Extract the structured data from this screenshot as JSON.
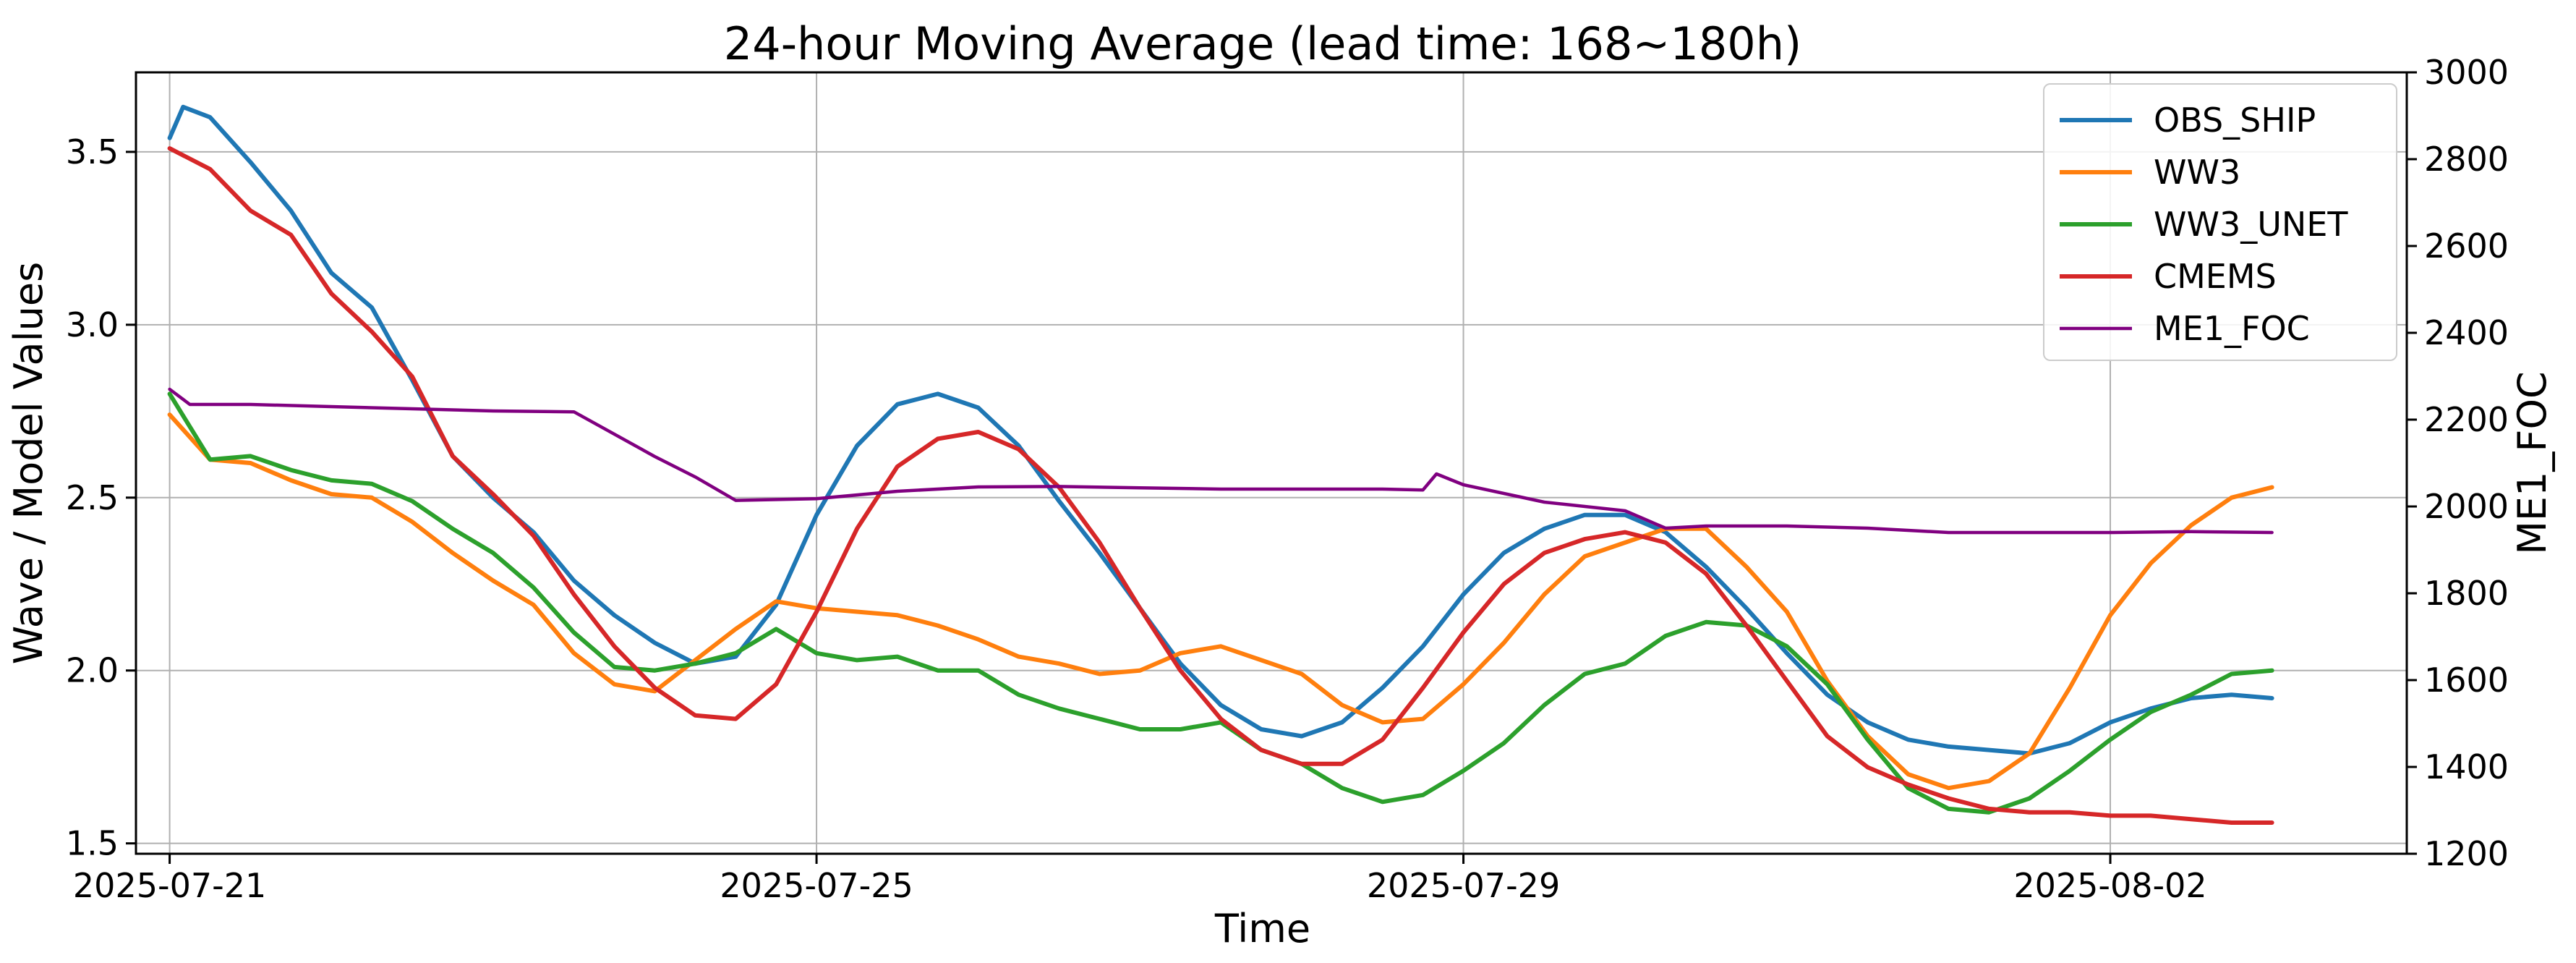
{
  "chart_data": {
    "type": "line",
    "title": "24-hour Moving Average (lead time: 168~180h)",
    "xlabel": "Time",
    "ylabel": "Wave / Model Values",
    "ylabel_right": "ME1_FOC",
    "x_ticks": [
      "2025-07-21",
      "2025-07-25",
      "2025-07-29",
      "2025-08-02"
    ],
    "x_range": [
      "2025-07-20T19:00",
      "2025-08-03T20:00"
    ],
    "y_ticks": [
      "1.5",
      "2.0",
      "2.5",
      "3.0",
      "3.5"
    ],
    "ylim": [
      1.47,
      3.73
    ],
    "y2_ticks": [
      "1200",
      "1400",
      "1600",
      "1800",
      "2000",
      "2200",
      "2400",
      "2600",
      "2800",
      "3000"
    ],
    "y2lim": [
      1200,
      3000
    ],
    "grid": true,
    "legend_position": "upper-right",
    "legend": [
      "OBS_SHIP",
      "WW3",
      "WW3_UNET",
      "CMEMS",
      "ME1_FOC"
    ],
    "series": [
      {
        "name": "OBS_SHIP",
        "axis": "left",
        "color": "#1f77b4",
        "points": [
          [
            "2025-07-21T00:00",
            3.54
          ],
          [
            "2025-07-21T02:00",
            3.63
          ],
          [
            "2025-07-21T06:00",
            3.6
          ],
          [
            "2025-07-21T12:00",
            3.47
          ],
          [
            "2025-07-21T18:00",
            3.33
          ],
          [
            "2025-07-22T00:00",
            3.15
          ],
          [
            "2025-07-22T06:00",
            3.05
          ],
          [
            "2025-07-22T12:00",
            2.84
          ],
          [
            "2025-07-22T18:00",
            2.62
          ],
          [
            "2025-07-23T00:00",
            2.5
          ],
          [
            "2025-07-23T06:00",
            2.4
          ],
          [
            "2025-07-23T12:00",
            2.26
          ],
          [
            "2025-07-23T18:00",
            2.16
          ],
          [
            "2025-07-24T00:00",
            2.08
          ],
          [
            "2025-07-24T06:00",
            2.02
          ],
          [
            "2025-07-24T12:00",
            2.04
          ],
          [
            "2025-07-24T18:00",
            2.19
          ],
          [
            "2025-07-25T00:00",
            2.45
          ],
          [
            "2025-07-25T06:00",
            2.65
          ],
          [
            "2025-07-25T12:00",
            2.77
          ],
          [
            "2025-07-25T18:00",
            2.8
          ],
          [
            "2025-07-26T00:00",
            2.76
          ],
          [
            "2025-07-26T06:00",
            2.65
          ],
          [
            "2025-07-26T12:00",
            2.49
          ],
          [
            "2025-07-26T18:00",
            2.34
          ],
          [
            "2025-07-27T00:00",
            2.18
          ],
          [
            "2025-07-27T06:00",
            2.02
          ],
          [
            "2025-07-27T12:00",
            1.9
          ],
          [
            "2025-07-27T18:00",
            1.83
          ],
          [
            "2025-07-28T00:00",
            1.81
          ],
          [
            "2025-07-28T06:00",
            1.85
          ],
          [
            "2025-07-28T12:00",
            1.95
          ],
          [
            "2025-07-28T18:00",
            2.07
          ],
          [
            "2025-07-29T00:00",
            2.22
          ],
          [
            "2025-07-29T06:00",
            2.34
          ],
          [
            "2025-07-29T12:00",
            2.41
          ],
          [
            "2025-07-29T18:00",
            2.45
          ],
          [
            "2025-07-30T00:00",
            2.45
          ],
          [
            "2025-07-30T06:00",
            2.4
          ],
          [
            "2025-07-30T12:00",
            2.3
          ],
          [
            "2025-07-30T18:00",
            2.18
          ],
          [
            "2025-07-31T00:00",
            2.05
          ],
          [
            "2025-07-31T06:00",
            1.93
          ],
          [
            "2025-07-31T12:00",
            1.85
          ],
          [
            "2025-07-31T18:00",
            1.8
          ],
          [
            "2025-08-01T00:00",
            1.78
          ],
          [
            "2025-08-01T06:00",
            1.77
          ],
          [
            "2025-08-01T12:00",
            1.76
          ],
          [
            "2025-08-01T18:00",
            1.79
          ],
          [
            "2025-08-02T00:00",
            1.85
          ],
          [
            "2025-08-02T06:00",
            1.89
          ],
          [
            "2025-08-02T12:00",
            1.92
          ],
          [
            "2025-08-02T18:00",
            1.93
          ],
          [
            "2025-08-03T00:00",
            1.92
          ]
        ]
      },
      {
        "name": "WW3",
        "axis": "left",
        "color": "#ff7f0e",
        "points": [
          [
            "2025-07-21T00:00",
            2.74
          ],
          [
            "2025-07-21T06:00",
            2.61
          ],
          [
            "2025-07-21T12:00",
            2.6
          ],
          [
            "2025-07-21T18:00",
            2.55
          ],
          [
            "2025-07-22T00:00",
            2.51
          ],
          [
            "2025-07-22T06:00",
            2.5
          ],
          [
            "2025-07-22T12:00",
            2.43
          ],
          [
            "2025-07-22T18:00",
            2.34
          ],
          [
            "2025-07-23T00:00",
            2.26
          ],
          [
            "2025-07-23T06:00",
            2.19
          ],
          [
            "2025-07-23T12:00",
            2.05
          ],
          [
            "2025-07-23T18:00",
            1.96
          ],
          [
            "2025-07-24T00:00",
            1.94
          ],
          [
            "2025-07-24T06:00",
            2.03
          ],
          [
            "2025-07-24T12:00",
            2.12
          ],
          [
            "2025-07-24T18:00",
            2.2
          ],
          [
            "2025-07-25T00:00",
            2.18
          ],
          [
            "2025-07-25T06:00",
            2.17
          ],
          [
            "2025-07-25T12:00",
            2.16
          ],
          [
            "2025-07-25T18:00",
            2.13
          ],
          [
            "2025-07-26T00:00",
            2.09
          ],
          [
            "2025-07-26T06:00",
            2.04
          ],
          [
            "2025-07-26T12:00",
            2.02
          ],
          [
            "2025-07-26T18:00",
            1.99
          ],
          [
            "2025-07-27T00:00",
            2.0
          ],
          [
            "2025-07-27T06:00",
            2.05
          ],
          [
            "2025-07-27T12:00",
            2.07
          ],
          [
            "2025-07-27T18:00",
            2.03
          ],
          [
            "2025-07-28T00:00",
            1.99
          ],
          [
            "2025-07-28T06:00",
            1.9
          ],
          [
            "2025-07-28T12:00",
            1.85
          ],
          [
            "2025-07-28T18:00",
            1.86
          ],
          [
            "2025-07-29T00:00",
            1.96
          ],
          [
            "2025-07-29T06:00",
            2.08
          ],
          [
            "2025-07-29T12:00",
            2.22
          ],
          [
            "2025-07-29T18:00",
            2.33
          ],
          [
            "2025-07-30T00:00",
            2.37
          ],
          [
            "2025-07-30T06:00",
            2.41
          ],
          [
            "2025-07-30T12:00",
            2.41
          ],
          [
            "2025-07-30T18:00",
            2.3
          ],
          [
            "2025-07-31T00:00",
            2.17
          ],
          [
            "2025-07-31T06:00",
            1.97
          ],
          [
            "2025-07-31T12:00",
            1.81
          ],
          [
            "2025-07-31T18:00",
            1.7
          ],
          [
            "2025-08-01T00:00",
            1.66
          ],
          [
            "2025-08-01T06:00",
            1.68
          ],
          [
            "2025-08-01T12:00",
            1.76
          ],
          [
            "2025-08-01T18:00",
            1.95
          ],
          [
            "2025-08-02T00:00",
            2.16
          ],
          [
            "2025-08-02T06:00",
            2.31
          ],
          [
            "2025-08-02T12:00",
            2.42
          ],
          [
            "2025-08-02T18:00",
            2.5
          ],
          [
            "2025-08-03T00:00",
            2.53
          ]
        ]
      },
      {
        "name": "WW3_UNET",
        "axis": "left",
        "color": "#2ca02c",
        "points": [
          [
            "2025-07-21T00:00",
            2.8
          ],
          [
            "2025-07-21T06:00",
            2.61
          ],
          [
            "2025-07-21T12:00",
            2.62
          ],
          [
            "2025-07-21T18:00",
            2.58
          ],
          [
            "2025-07-22T00:00",
            2.55
          ],
          [
            "2025-07-22T06:00",
            2.54
          ],
          [
            "2025-07-22T12:00",
            2.49
          ],
          [
            "2025-07-22T18:00",
            2.41
          ],
          [
            "2025-07-23T00:00",
            2.34
          ],
          [
            "2025-07-23T06:00",
            2.24
          ],
          [
            "2025-07-23T12:00",
            2.11
          ],
          [
            "2025-07-23T18:00",
            2.01
          ],
          [
            "2025-07-24T00:00",
            2.0
          ],
          [
            "2025-07-24T06:00",
            2.02
          ],
          [
            "2025-07-24T12:00",
            2.05
          ],
          [
            "2025-07-24T18:00",
            2.12
          ],
          [
            "2025-07-25T00:00",
            2.05
          ],
          [
            "2025-07-25T06:00",
            2.03
          ],
          [
            "2025-07-25T12:00",
            2.04
          ],
          [
            "2025-07-25T18:00",
            2.0
          ],
          [
            "2025-07-26T00:00",
            2.0
          ],
          [
            "2025-07-26T06:00",
            1.93
          ],
          [
            "2025-07-26T12:00",
            1.89
          ],
          [
            "2025-07-26T18:00",
            1.86
          ],
          [
            "2025-07-27T00:00",
            1.83
          ],
          [
            "2025-07-27T06:00",
            1.83
          ],
          [
            "2025-07-27T12:00",
            1.85
          ],
          [
            "2025-07-27T18:00",
            1.77
          ],
          [
            "2025-07-28T00:00",
            1.73
          ],
          [
            "2025-07-28T06:00",
            1.66
          ],
          [
            "2025-07-28T12:00",
            1.62
          ],
          [
            "2025-07-28T18:00",
            1.64
          ],
          [
            "2025-07-29T00:00",
            1.71
          ],
          [
            "2025-07-29T06:00",
            1.79
          ],
          [
            "2025-07-29T12:00",
            1.9
          ],
          [
            "2025-07-29T18:00",
            1.99
          ],
          [
            "2025-07-30T00:00",
            2.02
          ],
          [
            "2025-07-30T06:00",
            2.1
          ],
          [
            "2025-07-30T12:00",
            2.14
          ],
          [
            "2025-07-30T18:00",
            2.13
          ],
          [
            "2025-07-31T00:00",
            2.07
          ],
          [
            "2025-07-31T06:00",
            1.96
          ],
          [
            "2025-07-31T12:00",
            1.8
          ],
          [
            "2025-07-31T18:00",
            1.66
          ],
          [
            "2025-08-01T00:00",
            1.6
          ],
          [
            "2025-08-01T06:00",
            1.59
          ],
          [
            "2025-08-01T12:00",
            1.63
          ],
          [
            "2025-08-01T18:00",
            1.71
          ],
          [
            "2025-08-02T00:00",
            1.8
          ],
          [
            "2025-08-02T06:00",
            1.88
          ],
          [
            "2025-08-02T12:00",
            1.93
          ],
          [
            "2025-08-02T18:00",
            1.99
          ],
          [
            "2025-08-03T00:00",
            2.0
          ]
        ]
      },
      {
        "name": "CMEMS",
        "axis": "left",
        "color": "#d62728",
        "points": [
          [
            "2025-07-21T00:00",
            3.51
          ],
          [
            "2025-07-21T06:00",
            3.45
          ],
          [
            "2025-07-21T12:00",
            3.33
          ],
          [
            "2025-07-21T18:00",
            3.26
          ],
          [
            "2025-07-22T00:00",
            3.09
          ],
          [
            "2025-07-22T06:00",
            2.98
          ],
          [
            "2025-07-22T12:00",
            2.85
          ],
          [
            "2025-07-22T18:00",
            2.62
          ],
          [
            "2025-07-23T00:00",
            2.51
          ],
          [
            "2025-07-23T06:00",
            2.39
          ],
          [
            "2025-07-23T12:00",
            2.22
          ],
          [
            "2025-07-23T18:00",
            2.07
          ],
          [
            "2025-07-24T00:00",
            1.95
          ],
          [
            "2025-07-24T06:00",
            1.87
          ],
          [
            "2025-07-24T12:00",
            1.86
          ],
          [
            "2025-07-24T18:00",
            1.96
          ],
          [
            "2025-07-25T00:00",
            2.17
          ],
          [
            "2025-07-25T06:00",
            2.41
          ],
          [
            "2025-07-25T12:00",
            2.59
          ],
          [
            "2025-07-25T18:00",
            2.67
          ],
          [
            "2025-07-26T00:00",
            2.69
          ],
          [
            "2025-07-26T06:00",
            2.64
          ],
          [
            "2025-07-26T12:00",
            2.53
          ],
          [
            "2025-07-26T18:00",
            2.37
          ],
          [
            "2025-07-27T00:00",
            2.18
          ],
          [
            "2025-07-27T06:00",
            2.0
          ],
          [
            "2025-07-27T12:00",
            1.86
          ],
          [
            "2025-07-27T18:00",
            1.77
          ],
          [
            "2025-07-28T00:00",
            1.73
          ],
          [
            "2025-07-28T06:00",
            1.73
          ],
          [
            "2025-07-28T12:00",
            1.8
          ],
          [
            "2025-07-28T18:00",
            1.95
          ],
          [
            "2025-07-29T00:00",
            2.11
          ],
          [
            "2025-07-29T06:00",
            2.25
          ],
          [
            "2025-07-29T12:00",
            2.34
          ],
          [
            "2025-07-29T18:00",
            2.38
          ],
          [
            "2025-07-30T00:00",
            2.4
          ],
          [
            "2025-07-30T06:00",
            2.37
          ],
          [
            "2025-07-30T12:00",
            2.28
          ],
          [
            "2025-07-30T18:00",
            2.13
          ],
          [
            "2025-07-31T00:00",
            1.97
          ],
          [
            "2025-07-31T06:00",
            1.81
          ],
          [
            "2025-07-31T12:00",
            1.72
          ],
          [
            "2025-07-31T18:00",
            1.67
          ],
          [
            "2025-08-01T00:00",
            1.63
          ],
          [
            "2025-08-01T06:00",
            1.6
          ],
          [
            "2025-08-01T12:00",
            1.59
          ],
          [
            "2025-08-01T18:00",
            1.59
          ],
          [
            "2025-08-02T00:00",
            1.58
          ],
          [
            "2025-08-02T06:00",
            1.58
          ],
          [
            "2025-08-02T12:00",
            1.57
          ],
          [
            "2025-08-02T18:00",
            1.56
          ],
          [
            "2025-08-03T00:00",
            1.56
          ]
        ]
      },
      {
        "name": "ME1_FOC",
        "axis": "right",
        "color": "#800080",
        "points": [
          [
            "2025-07-21T00:00",
            2270
          ],
          [
            "2025-07-21T03:00",
            2235
          ],
          [
            "2025-07-21T12:00",
            2235
          ],
          [
            "2025-07-22T00:00",
            2230
          ],
          [
            "2025-07-22T12:00",
            2225
          ],
          [
            "2025-07-23T00:00",
            2220
          ],
          [
            "2025-07-23T12:00",
            2218
          ],
          [
            "2025-07-24T00:00",
            2115
          ],
          [
            "2025-07-24T06:00",
            2068
          ],
          [
            "2025-07-24T12:00",
            2014
          ],
          [
            "2025-07-25T00:00",
            2018
          ],
          [
            "2025-07-25T12:00",
            2035
          ],
          [
            "2025-07-26T00:00",
            2045
          ],
          [
            "2025-07-26T12:00",
            2046
          ],
          [
            "2025-07-27T00:00",
            2043
          ],
          [
            "2025-07-27T12:00",
            2040
          ],
          [
            "2025-07-28T00:00",
            2040
          ],
          [
            "2025-07-28T12:00",
            2040
          ],
          [
            "2025-07-28T18:00",
            2038
          ],
          [
            "2025-07-28T20:00",
            2075
          ],
          [
            "2025-07-29T00:00",
            2050
          ],
          [
            "2025-07-29T12:00",
            2010
          ],
          [
            "2025-07-30T00:00",
            1990
          ],
          [
            "2025-07-30T06:00",
            1950
          ],
          [
            "2025-07-30T12:00",
            1955
          ],
          [
            "2025-07-31T00:00",
            1955
          ],
          [
            "2025-07-31T12:00",
            1950
          ],
          [
            "2025-08-01T00:00",
            1940
          ],
          [
            "2025-08-01T12:00",
            1940
          ],
          [
            "2025-08-02T00:00",
            1940
          ],
          [
            "2025-08-02T12:00",
            1942
          ],
          [
            "2025-08-03T00:00",
            1940
          ]
        ]
      }
    ]
  }
}
